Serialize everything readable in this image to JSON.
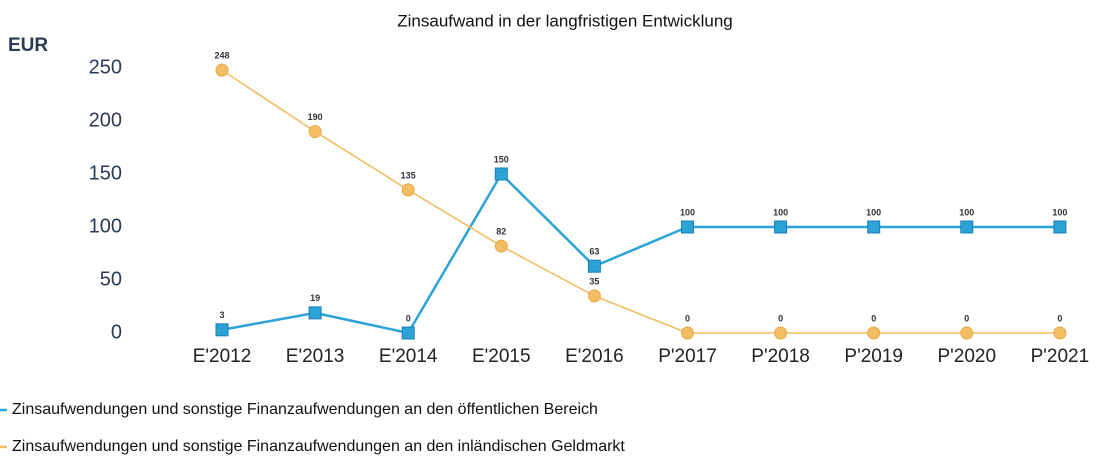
{
  "chart_data": {
    "type": "line",
    "title": "Zinsaufwand in der langfristigen Entwicklung",
    "y_label": "EUR",
    "categories": [
      "E'2012",
      "E'2013",
      "E'2014",
      "E'2015",
      "E'2016",
      "P'2017",
      "P'2018",
      "P'2019",
      "P'2020",
      "P'2021"
    ],
    "series": [
      {
        "name": "Zinsaufwendungen und sonstige Finanzaufwendungen an den öffentlichen Bereich",
        "color": "#2ba3d6",
        "marker": "square",
        "values": [
          3,
          19,
          0,
          150,
          63,
          100,
          100,
          100,
          100,
          100
        ]
      },
      {
        "name": "Zinsaufwendungen und sonstige Finanzaufwendungen an den inländischen Geldmarkt",
        "color": "#f2bd63",
        "marker": "circle",
        "values": [
          248,
          190,
          135,
          82,
          35,
          0,
          0,
          0,
          0,
          0
        ]
      }
    ],
    "ylim": [
      0,
      250
    ],
    "yticks": [
      0,
      50,
      100,
      150,
      200,
      250
    ],
    "data_labels": true,
    "legend": "bottom"
  }
}
